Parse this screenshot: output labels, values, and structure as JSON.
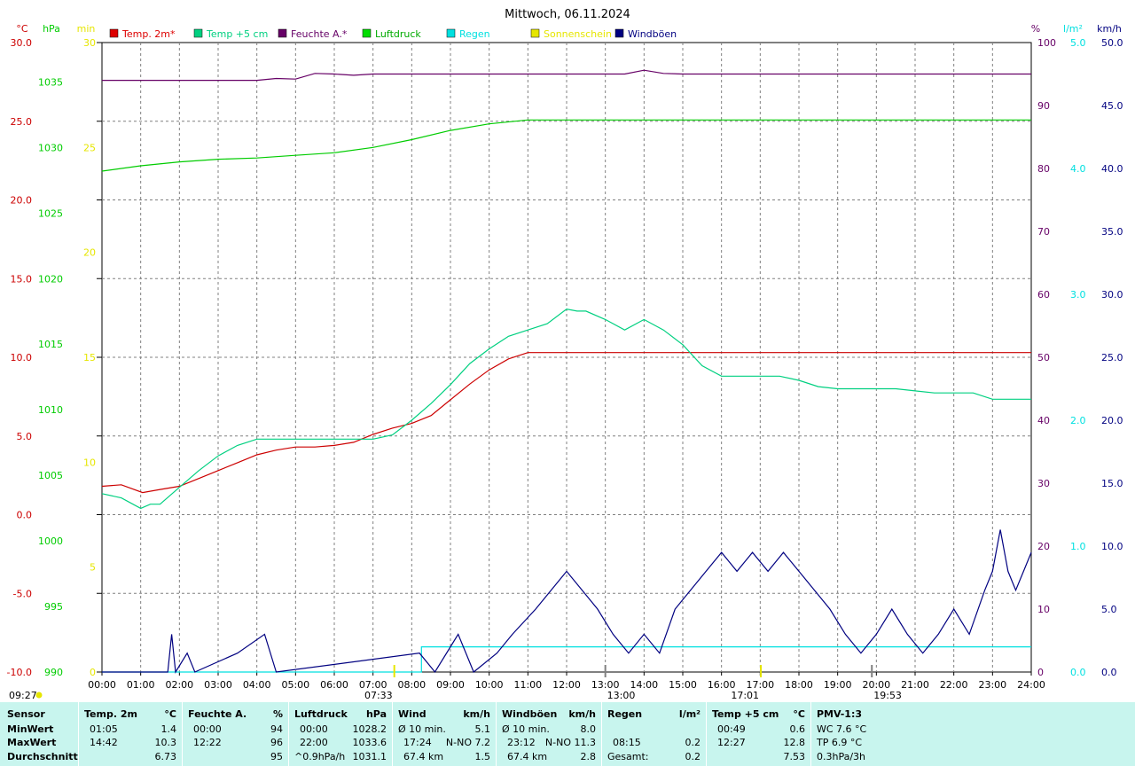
{
  "chart_data": {
    "type": "line",
    "title": "Mittwoch, 06.11.2024",
    "x_ticks": [
      "00:00",
      "01:00",
      "02:00",
      "03:00",
      "04:00",
      "05:00",
      "06:00",
      "07:00",
      "08:00",
      "09:00",
      "10:00",
      "11:00",
      "12:00",
      "13:00",
      "14:00",
      "15:00",
      "16:00",
      "17:00",
      "18:00",
      "19:00",
      "20:00",
      "21:00",
      "22:00",
      "23:00",
      "24:00"
    ],
    "xlim": [
      0,
      24
    ],
    "axes": {
      "temp_c": {
        "unit": "°C",
        "ticks": [
          "30.0",
          "25.0",
          "20.0",
          "15.0",
          "10.0",
          "5.0",
          "0.0",
          "-5.0",
          "-10.0"
        ],
        "range": [
          -10,
          30
        ],
        "color": "#cc0000"
      },
      "pressure_hpa": {
        "unit": "hPa",
        "ticks": [
          "1035",
          "1030",
          "1025",
          "1020",
          "1015",
          "1010",
          "1005",
          "1000",
          "995",
          "990"
        ],
        "range": [
          990,
          1038
        ],
        "color": "#00cc00"
      },
      "sun_min": {
        "unit": "min",
        "ticks": [
          "30",
          "25",
          "20",
          "15",
          "10",
          "5",
          "0"
        ],
        "range": [
          0,
          30
        ],
        "color": "#e6e600"
      },
      "humidity_pct": {
        "unit": "%",
        "ticks": [
          "100",
          "90",
          "80",
          "70",
          "60",
          "50",
          "40",
          "30",
          "20",
          "10",
          "0"
        ],
        "range": [
          0,
          100
        ],
        "color": "#660066"
      },
      "rain_lm2": {
        "unit": "l/m²",
        "ticks": [
          "5.0",
          "4.0",
          "3.0",
          "2.0",
          "1.0",
          "0.0"
        ],
        "range": [
          0,
          5
        ],
        "color": "#00e0e0"
      },
      "wind_kmh": {
        "unit": "km/h",
        "ticks": [
          "50.0",
          "45.0",
          "40.0",
          "35.0",
          "30.0",
          "25.0",
          "20.0",
          "15.0",
          "10.0",
          "5.0",
          "0.0"
        ],
        "range": [
          0,
          50
        ],
        "color": "#000080"
      }
    },
    "legend": [
      {
        "name": "Temp. 2m*",
        "color": "#dd0000"
      },
      {
        "name": "Temp +5 cm",
        "color": "#00d080"
      },
      {
        "name": "Feuchte A.*",
        "color": "#660066"
      },
      {
        "name": "Luftdruck",
        "color": "#00dd00"
      },
      {
        "name": "Regen",
        "color": "#00e0e0"
      },
      {
        "name": "Sonnenschein",
        "color": "#e6e600"
      },
      {
        "name": "Windböen",
        "color": "#000080"
      }
    ],
    "series": [
      {
        "name": "Temp. 2m*",
        "axis": "temp_c",
        "color": "#cc0000",
        "x": [
          0,
          0.5,
          1.05,
          1.5,
          2,
          2.5,
          3,
          3.5,
          4,
          4.5,
          5,
          5.5,
          6,
          6.5,
          7,
          7.5,
          8,
          8.5,
          9,
          9.5,
          10,
          10.5,
          11,
          11.5,
          12,
          12.5,
          13,
          13.5,
          14,
          14.5,
          14.7,
          15,
          15.5,
          16,
          16.5,
          17,
          17.5,
          18,
          18.5,
          19,
          19.5,
          20,
          20.5,
          21,
          21.5,
          22,
          22.5,
          23,
          23.5,
          24
        ],
        "y": [
          1.8,
          1.9,
          1.4,
          1.6,
          1.8,
          2.3,
          2.8,
          3.3,
          3.8,
          4.1,
          4.3,
          4.3,
          4.4,
          4.6,
          5.1,
          5.5,
          5.8,
          6.3,
          7.3,
          8.3,
          9.2,
          9.9,
          10.3,
          10.3,
          10.3,
          10.3,
          10.3,
          10.3,
          10.3,
          10.3,
          10.3,
          10.3,
          10.3,
          10.3,
          10.3,
          10.3,
          10.3,
          10.3,
          10.3,
          10.3,
          10.3,
          10.3,
          10.3,
          10.3,
          10.3,
          10.3,
          10.3,
          10.3,
          10.3,
          10.3
        ]
      },
      {
        "name": "Temp +5 cm",
        "axis": "sun_min",
        "color": "#00d080",
        "x": [
          0,
          0.5,
          1,
          1.25,
          1.5,
          2,
          2.5,
          3,
          3.5,
          4,
          4.5,
          5,
          5.5,
          6,
          6.5,
          7,
          7.5,
          8,
          8.5,
          9,
          9.5,
          10,
          10.5,
          11,
          11.5,
          12,
          12.27,
          12.5,
          13,
          13.5,
          14,
          14.5,
          15,
          15.5,
          16,
          16.5,
          17,
          17.5,
          18,
          18.5,
          19,
          19.5,
          20,
          20.5,
          21,
          21.5,
          22,
          22.5,
          23,
          23.5,
          24
        ],
        "y": [
          8.5,
          8.3,
          7.8,
          8.0,
          8.0,
          8.8,
          9.6,
          10.3,
          10.8,
          11.1,
          11.1,
          11.1,
          11.1,
          11.1,
          11.1,
          11.1,
          11.3,
          12.0,
          12.8,
          13.7,
          14.7,
          15.4,
          16.0,
          16.3,
          16.6,
          17.3,
          17.2,
          17.2,
          16.8,
          16.3,
          16.8,
          16.3,
          15.6,
          14.6,
          14.1,
          14.1,
          14.1,
          14.1,
          13.9,
          13.6,
          13.5,
          13.5,
          13.5,
          13.5,
          13.4,
          13.3,
          13.3,
          13.3,
          13.0,
          13.0,
          13.0
        ]
      },
      {
        "name": "Feuchte A.*",
        "axis": "humidity_pct",
        "color": "#660066",
        "x": [
          0,
          1,
          2,
          3,
          4,
          4.5,
          5,
          5.5,
          6,
          6.5,
          7,
          7.5,
          8,
          9,
          10,
          11,
          12,
          12.22,
          12.5,
          13,
          13.5,
          14,
          14.5,
          15,
          16,
          17,
          18,
          19,
          20,
          21,
          22,
          23,
          24
        ],
        "y": [
          94.0,
          94.0,
          94.0,
          94.0,
          94.0,
          94.3,
          94.2,
          95.1,
          95.0,
          94.8,
          95.0,
          95.0,
          95.0,
          95.0,
          95.0,
          95.0,
          95.0,
          95.0,
          95.0,
          95.0,
          95.0,
          95.6,
          95.1,
          95.0,
          95.0,
          95.0,
          95.0,
          95.0,
          95.0,
          95.0,
          95.0,
          95.0,
          95.0
        ]
      },
      {
        "name": "Luftdruck",
        "axis": "pressure_hpa",
        "color": "#00cc00",
        "x": [
          0,
          1,
          2,
          3,
          4,
          5,
          6,
          7,
          8,
          9,
          10,
          11,
          12,
          13,
          14,
          15,
          16,
          17,
          18,
          19,
          20,
          21,
          22,
          22.5,
          23,
          23.5,
          24
        ],
        "y": [
          1028.2,
          1028.6,
          1028.9,
          1029.1,
          1029.2,
          1029.4,
          1029.6,
          1030.0,
          1030.6,
          1031.3,
          1031.8,
          1032.1,
          1032.1,
          1032.1,
          1032.1,
          1032.1,
          1032.1,
          1032.1,
          1032.1,
          1032.1,
          1032.1,
          1032.1,
          1032.1,
          1032.1,
          1032.1,
          1032.1,
          1032.1
        ]
      },
      {
        "name": "Regen",
        "axis": "rain_lm2",
        "color": "#00e0e0",
        "x": [
          0,
          8.25,
          8.25,
          24
        ],
        "y": [
          0,
          0,
          0.2,
          0.2
        ]
      },
      {
        "name": "Windböen",
        "axis": "wind_kmh",
        "color": "#000080",
        "x": [
          0,
          1.7,
          1.8,
          1.9,
          2.2,
          2.4,
          3.5,
          4.2,
          4.5,
          8.2,
          8.6,
          9.2,
          9.6,
          10.2,
          10.6,
          11.2,
          11.6,
          12.0,
          12.4,
          12.8,
          13.2,
          13.6,
          14.0,
          14.4,
          14.8,
          15.2,
          15.6,
          16.0,
          16.4,
          16.8,
          17.2,
          17.6,
          18.0,
          18.4,
          18.8,
          19.2,
          19.6,
          20.0,
          20.4,
          20.8,
          21.2,
          21.6,
          22.0,
          22.4,
          22.8,
          23.0,
          23.2,
          23.4,
          23.6,
          23.8,
          24
        ],
        "y": [
          0,
          0,
          3,
          0,
          1.5,
          0,
          1.5,
          3,
          0,
          1.5,
          0,
          3,
          0,
          1.5,
          3,
          5,
          6.5,
          8,
          6.5,
          5,
          3,
          1.5,
          3,
          1.5,
          5,
          6.5,
          8,
          9.5,
          8,
          9.5,
          8,
          9.5,
          8,
          6.5,
          5,
          3,
          1.5,
          3,
          5,
          3,
          1.5,
          3,
          5,
          3,
          6.5,
          8,
          11.3,
          8,
          6.5,
          8,
          9.5
        ]
      }
    ]
  },
  "markers": {
    "sunrise": "07:33",
    "sunset": "17:01",
    "solar_noon": "13:00",
    "moonrise": "09:27",
    "moonset": "19:53"
  },
  "stats": {
    "row_labels": {
      "sensor": "Sensor",
      "min": "MinWert",
      "max": "MaxWert",
      "avg": "Durchschnitt"
    },
    "temp2m": {
      "head": "Temp. 2m",
      "unit": "°C",
      "min_time": "01:05",
      "min": "1.4",
      "max_time": "14:42",
      "max": "10.3",
      "avg": "6.73"
    },
    "humidity": {
      "head": "Feuchte A.",
      "unit": "%",
      "min_time": "00:00",
      "min": "94",
      "max_time": "12:22",
      "max": "96",
      "avg": "95"
    },
    "pressure": {
      "head": "Luftdruck",
      "unit": "hPa",
      "min_time": "00:00",
      "min": "1028.2",
      "max_time": "22:00",
      "max": "1033.6",
      "avg_label": "^0.9hPa/h",
      "avg": "1031.1"
    },
    "wind": {
      "head": "Wind",
      "unit": "km/h",
      "min_label": "Ø 10 min.",
      "min": "5.1",
      "max_time": "17:24",
      "max_dir": "N-NO 7.2",
      "avg_label": "67.4 km",
      "avg": "1.5"
    },
    "gusts": {
      "head": "Windböen",
      "unit": "km/h",
      "min_label": "Ø 10 min.",
      "min": "8.0",
      "max_time": "23:12",
      "max_dir": "N-NO 11.3",
      "avg_label": "67.4 km",
      "avg": "2.8"
    },
    "rain": {
      "head": "Regen",
      "unit": "l/m²",
      "max_time": "08:15",
      "max": "0.2",
      "total_label": "Gesamt:",
      "total": "0.2"
    },
    "temp5cm": {
      "head": "Temp +5 cm",
      "unit": "°C",
      "min_time": "00:49",
      "min": "0.6",
      "max_time": "12:27",
      "max": "12.8",
      "avg": "7.53"
    },
    "pmv": {
      "head": "PMV-1:3",
      "line1": "WC 7.6 °C",
      "line2": "TP 6.9 °C",
      "line3": "0.3hPa/3h"
    }
  }
}
